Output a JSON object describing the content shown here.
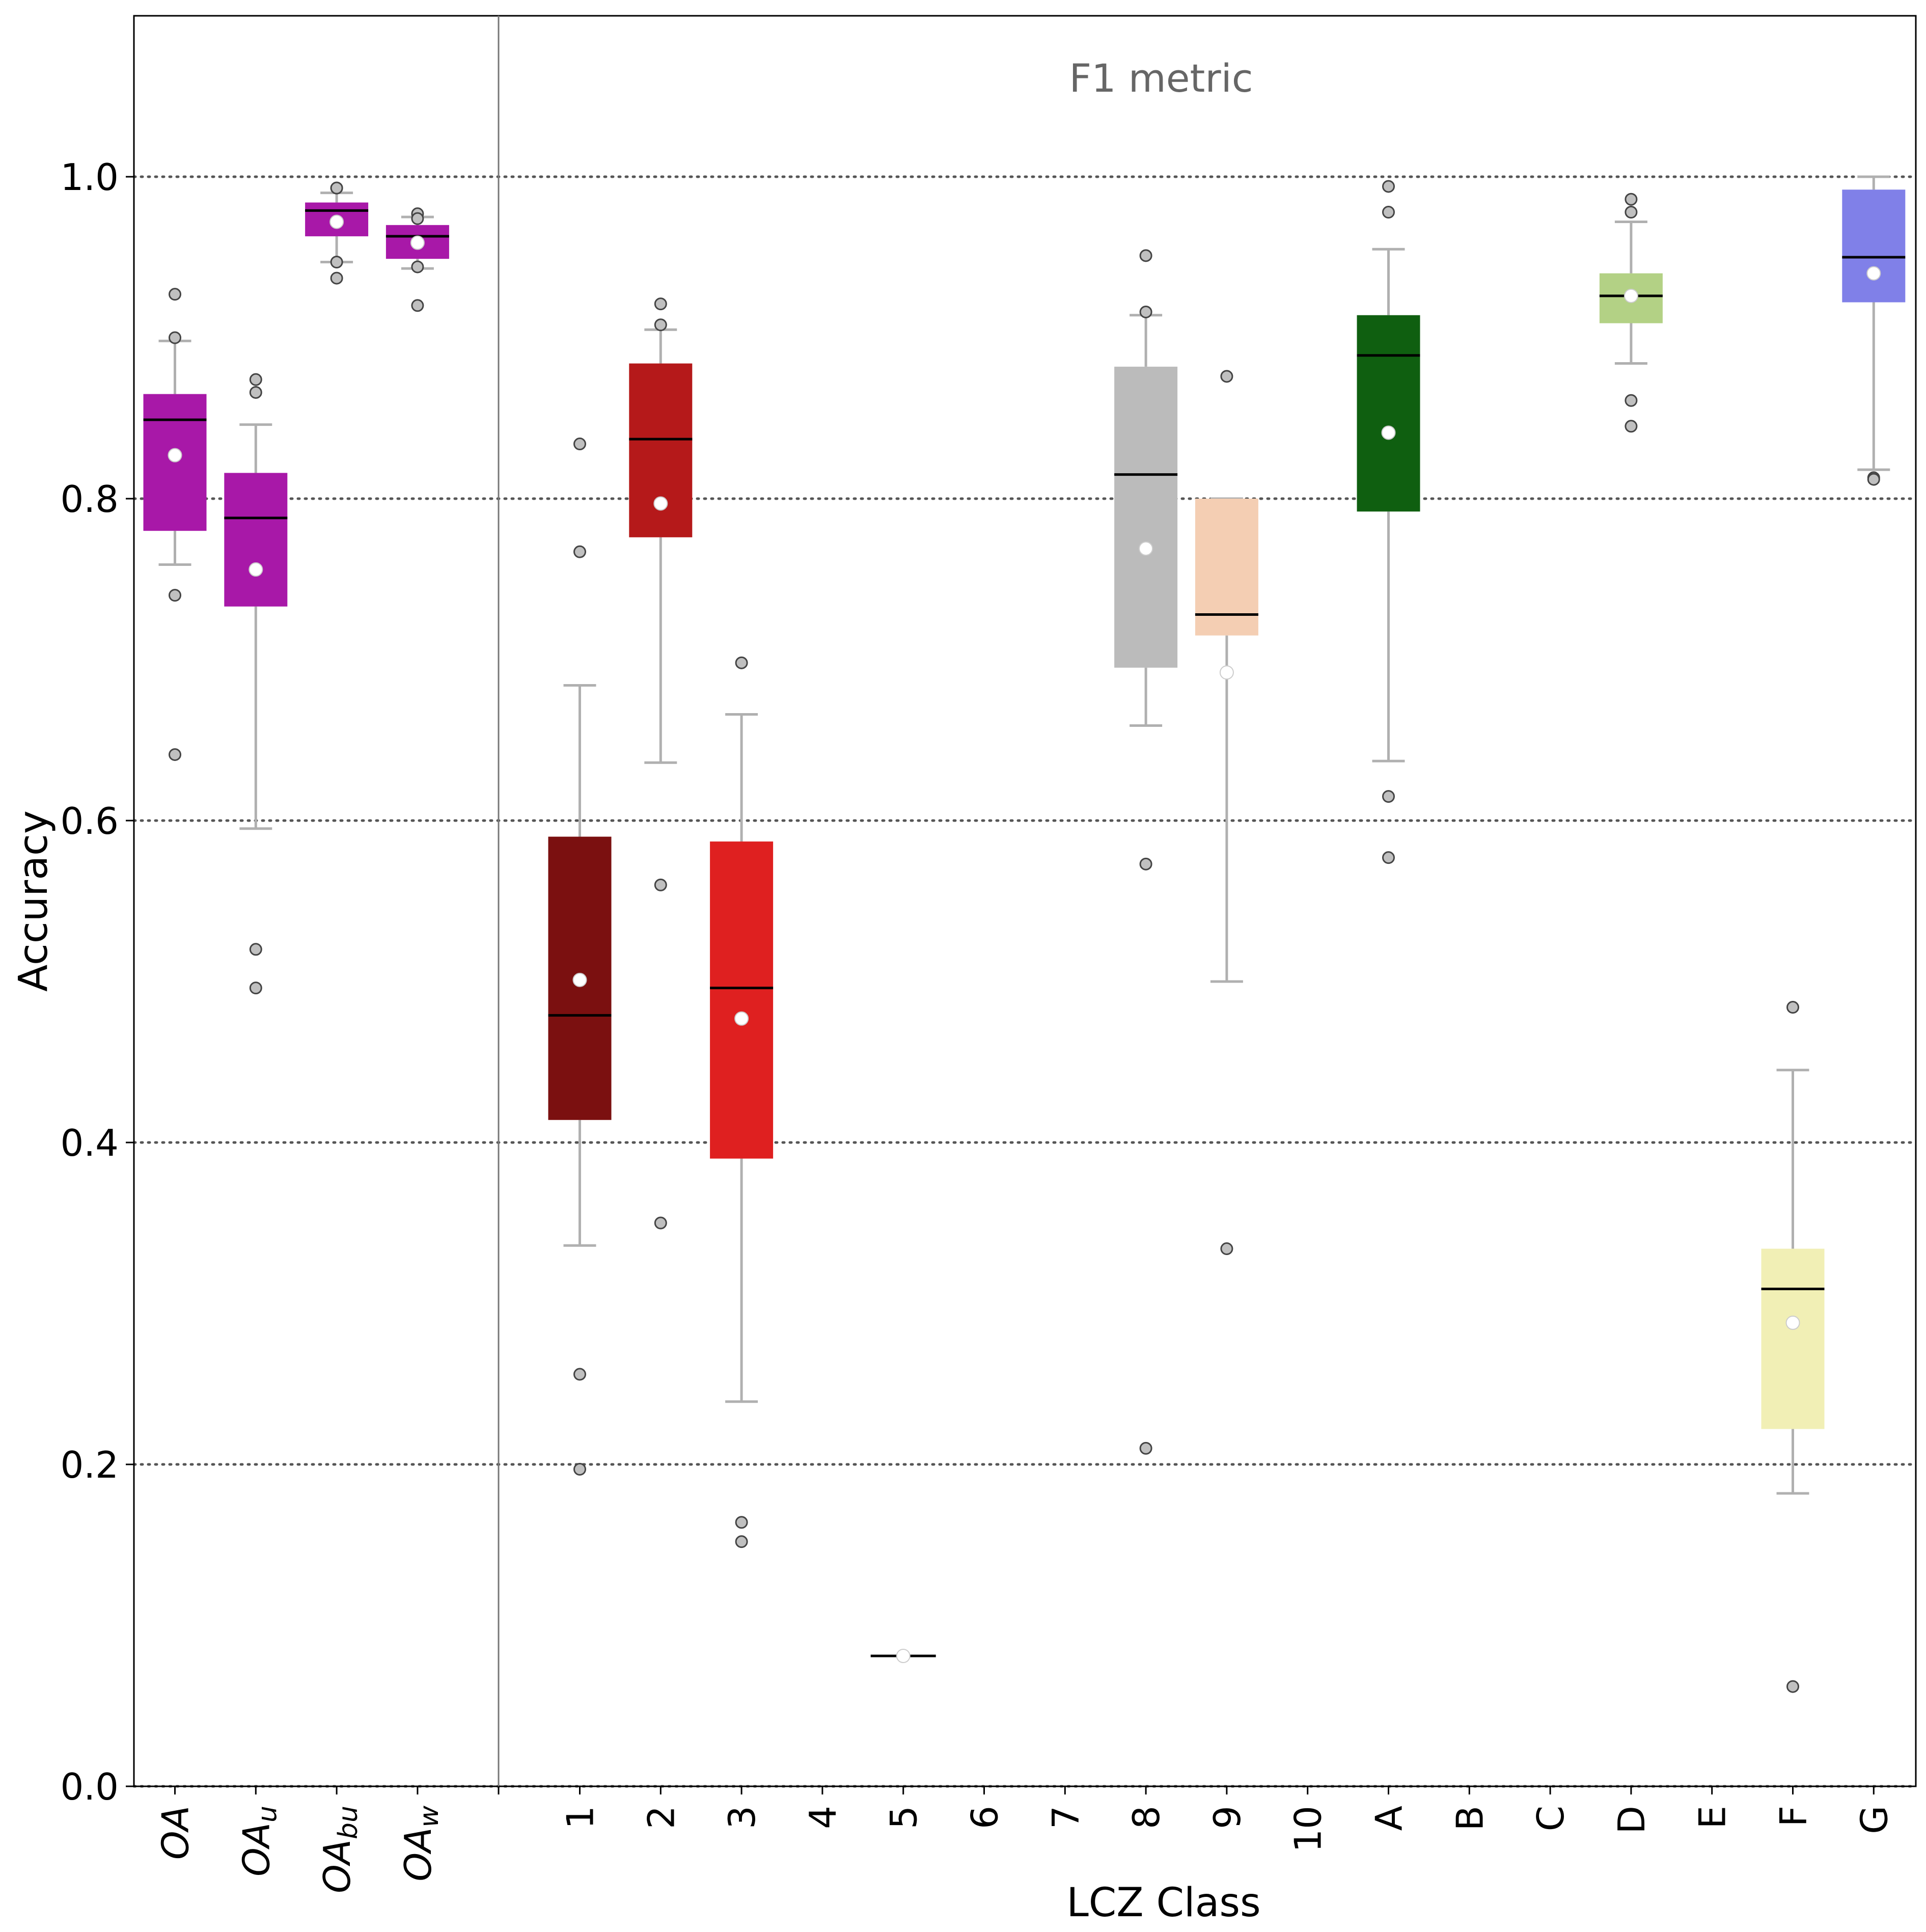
{
  "chart_data": {
    "type": "box",
    "annotation": "F1 metric",
    "xlabel": "LCZ Class",
    "ylabel": "Accuracy",
    "ylim": [
      0.0,
      1.1
    ],
    "yticks": [
      "0.0",
      "0.2",
      "0.4",
      "0.6",
      "0.8",
      "1.0"
    ],
    "ytick_values": [
      0.0,
      0.2,
      0.4,
      0.6,
      0.8,
      1.0
    ],
    "grid": "horizontal dotted at 0.2 steps",
    "overall_group": [
      {
        "label": "OA",
        "sub": "",
        "color": "#a818a8",
        "q1": 0.78,
        "median": 0.849,
        "q3": 0.865,
        "whisker_low": 0.759,
        "whisker_high": 0.898,
        "mean": 0.827,
        "outliers": [
          0.927,
          0.9,
          0.74,
          0.641
        ]
      },
      {
        "label": "OA",
        "sub": "u",
        "color": "#a818a8",
        "q1": 0.733,
        "median": 0.788,
        "q3": 0.816,
        "whisker_low": 0.595,
        "whisker_high": 0.846,
        "mean": 0.756,
        "outliers": [
          0.874,
          0.866,
          0.52,
          0.496
        ]
      },
      {
        "label": "OA",
        "sub": "bu",
        "color": "#a818a8",
        "q1": 0.963,
        "median": 0.979,
        "q3": 0.984,
        "whisker_low": 0.947,
        "whisker_high": 0.99,
        "mean": 0.972,
        "outliers": [
          0.993,
          0.993,
          0.947,
          0.937
        ]
      },
      {
        "label": "OA",
        "sub": "w",
        "color": "#a818a8",
        "q1": 0.949,
        "median": 0.963,
        "q3": 0.97,
        "whisker_low": 0.943,
        "whisker_high": 0.975,
        "mean": 0.959,
        "outliers": [
          0.977,
          0.974,
          0.944,
          0.92
        ]
      }
    ],
    "class_group": [
      {
        "label": "1",
        "color": "#7b1010",
        "q1": 0.414,
        "median": 0.479,
        "q3": 0.59,
        "whisker_low": 0.336,
        "whisker_high": 0.684,
        "mean": 0.501,
        "outliers": [
          0.834,
          0.767,
          0.256,
          0.197
        ]
      },
      {
        "label": "2",
        "color": "#b5191a",
        "q1": 0.776,
        "median": 0.837,
        "q3": 0.884,
        "whisker_low": 0.636,
        "whisker_high": 0.905,
        "mean": 0.797,
        "outliers": [
          0.921,
          0.908,
          0.56,
          0.35
        ]
      },
      {
        "label": "3",
        "color": "#df2020",
        "q1": 0.39,
        "median": 0.496,
        "q3": 0.587,
        "whisker_low": 0.239,
        "whisker_high": 0.666,
        "mean": 0.477,
        "outliers": [
          0.698,
          0.164,
          0.152
        ]
      },
      {
        "label": "4",
        "color": null
      },
      {
        "label": "5",
        "color": "#ff6600",
        "q1": 0.081,
        "median": 0.081,
        "q3": 0.081,
        "whisker_low": 0.081,
        "whisker_high": 0.081,
        "mean": 0.081,
        "outliers": []
      },
      {
        "label": "6",
        "color": null
      },
      {
        "label": "7",
        "color": null
      },
      {
        "label": "8",
        "color": "#bbbbbb",
        "q1": 0.695,
        "median": 0.815,
        "q3": 0.882,
        "whisker_low": 0.659,
        "whisker_high": 0.914,
        "mean": 0.769,
        "outliers": [
          0.951,
          0.916,
          0.573,
          0.21
        ]
      },
      {
        "label": "9",
        "color": "#f4ceb3",
        "q1": 0.715,
        "median": 0.728,
        "q3": 0.8,
        "whisker_low": 0.5,
        "whisker_high": 0.8,
        "mean": 0.692,
        "outliers": [
          0.876,
          0.334
        ]
      },
      {
        "label": "10",
        "color": null
      },
      {
        "label": "A",
        "color": "#0f5f10",
        "q1": 0.792,
        "median": 0.889,
        "q3": 0.914,
        "whisker_low": 0.637,
        "whisker_high": 0.955,
        "mean": 0.841,
        "outliers": [
          0.994,
          0.978,
          0.615,
          0.577
        ]
      },
      {
        "label": "B",
        "color": null
      },
      {
        "label": "C",
        "color": null
      },
      {
        "label": "D",
        "color": "#b3d185",
        "q1": 0.909,
        "median": 0.926,
        "q3": 0.94,
        "whisker_low": 0.884,
        "whisker_high": 0.972,
        "mean": 0.926,
        "outliers": [
          0.986,
          0.978,
          0.861,
          0.845
        ]
      },
      {
        "label": "E",
        "color": null
      },
      {
        "label": "F",
        "color": "#f1efb5",
        "q1": 0.222,
        "median": 0.309,
        "q3": 0.334,
        "whisker_low": 0.182,
        "whisker_high": 0.445,
        "mean": 0.288,
        "outliers": [
          0.484,
          0.062
        ]
      },
      {
        "label": "G",
        "color": "#8080e8",
        "q1": 0.922,
        "median": 0.95,
        "q3": 0.992,
        "whisker_low": 0.818,
        "whisker_high": 1.0,
        "mean": 0.94,
        "outliers": [
          0.813,
          0.812
        ]
      }
    ],
    "style": {
      "whisker_color": "#b0b0b0",
      "median_color": "#000000",
      "mean_marker_color": "#ffffff",
      "outlier_fill": "#c0c0c0",
      "outlier_stroke": "#444444",
      "grid_color": "#555555",
      "annotation_color": "#666666"
    }
  }
}
